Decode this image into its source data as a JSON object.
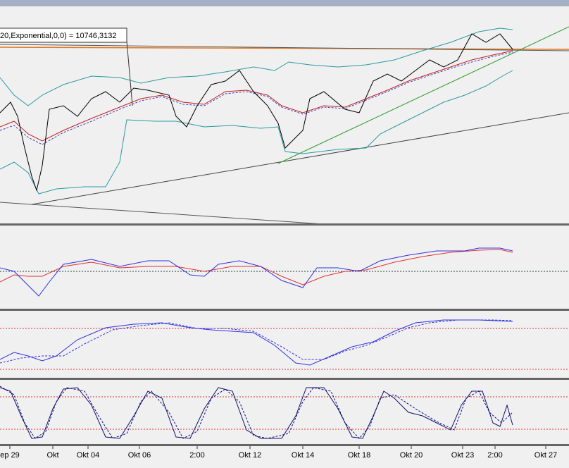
{
  "indicator_label": "20,Exponential,0,0) = 10746,3132",
  "x_axis": {
    "labels": [
      "ep 29",
      "Okt",
      "Okt 04",
      "Okt 06",
      "2:00",
      "Okt 12",
      "Okt 14",
      "Okt 18",
      "Okt 20",
      "Okt 23",
      "2:00",
      "Okt 27"
    ]
  }
}
